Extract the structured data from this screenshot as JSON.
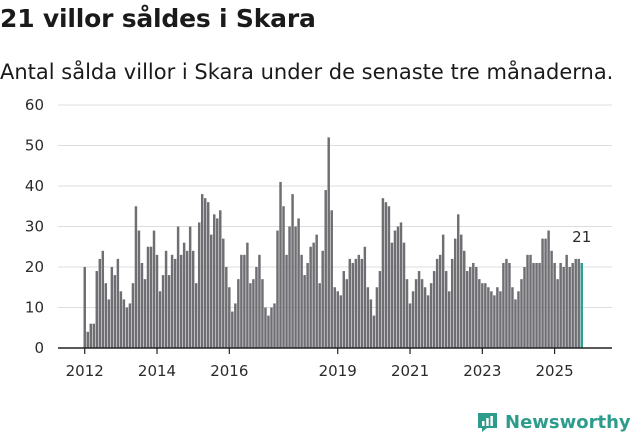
{
  "header": {
    "title": "21 villor såldes i Skara",
    "subtitle": "Antal sålda villor i Skara under de senaste tre månaderna."
  },
  "brand": {
    "name": "Newsworthy",
    "color": "#2e9c8d"
  },
  "colors": {
    "bar": "#6f6e73",
    "highlight": "#2e9c8d",
    "grid": "#dddddd"
  },
  "chart_data": {
    "type": "bar",
    "title": "21 villor såldes i Skara",
    "subtitle": "Antal sålda villor i Skara under de senaste tre månaderna.",
    "xlabel": "",
    "ylabel": "",
    "ylim": [
      0,
      60
    ],
    "yticks": [
      "0",
      "10",
      "20",
      "30",
      "40",
      "50",
      "60"
    ],
    "grid": true,
    "start": [
      2012,
      1
    ],
    "xticks": [
      {
        "label": "2012",
        "year": 2012
      },
      {
        "label": "2014",
        "year": 2014
      },
      {
        "label": "2016",
        "year": 2016
      },
      {
        "label": "2019",
        "year": 2019
      },
      {
        "label": "2021",
        "year": 2021
      },
      {
        "label": "2023",
        "year": 2023
      },
      {
        "label": "2025",
        "year": 2025
      }
    ],
    "last_label": "21",
    "values": [
      20,
      4,
      6,
      6,
      19,
      22,
      24,
      16,
      12,
      20,
      18,
      22,
      14,
      12,
      10,
      11,
      16,
      35,
      29,
      21,
      17,
      25,
      25,
      29,
      23,
      14,
      18,
      24,
      18,
      23,
      22,
      30,
      23,
      26,
      24,
      30,
      24,
      16,
      31,
      38,
      37,
      36,
      28,
      33,
      32,
      34,
      27,
      20,
      15,
      9,
      11,
      17,
      23,
      23,
      26,
      16,
      17,
      20,
      23,
      17,
      10,
      8,
      10,
      11,
      29,
      41,
      35,
      23,
      30,
      38,
      30,
      32,
      23,
      18,
      21,
      25,
      26,
      28,
      16,
      24,
      39,
      52,
      34,
      15,
      14,
      13,
      19,
      17,
      22,
      21,
      22,
      23,
      22,
      25,
      15,
      12,
      8,
      15,
      19,
      37,
      36,
      35,
      26,
      29,
      30,
      31,
      26,
      17,
      11,
      14,
      17,
      19,
      17,
      15,
      13,
      16,
      19,
      22,
      23,
      28,
      19,
      14,
      22,
      27,
      33,
      28,
      24,
      19,
      20,
      21,
      20,
      17,
      16,
      16,
      15,
      14,
      13,
      15,
      14,
      21,
      22,
      21,
      15,
      12,
      14,
      17,
      20,
      23,
      23,
      21,
      21,
      21,
      27,
      27,
      29,
      24,
      21,
      17,
      21,
      20,
      23,
      20,
      21,
      22,
      22,
      21
    ]
  }
}
